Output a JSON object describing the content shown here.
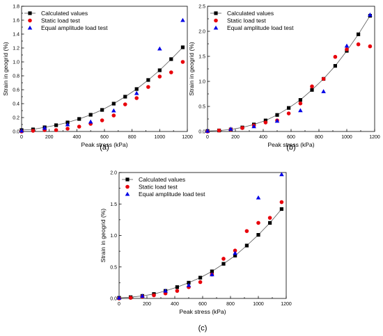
{
  "figure": {
    "legend_labels": {
      "calculated": "Calculated values",
      "static": "Static load test",
      "equal": "Equal amplitude load test"
    },
    "colors": {
      "calculated": "#000000",
      "static": "#e8000b",
      "equal": "#0000e6"
    }
  },
  "chart_data": [
    {
      "type": "scatter",
      "panel_label": "(a)",
      "xlabel": "Peak stress (kPa)",
      "ylabel": "Strain in geogrid (%)",
      "xlim": [
        0,
        1200
      ],
      "ylim": [
        0,
        1.8
      ],
      "xticks": [
        0,
        200,
        400,
        600,
        800,
        1000,
        1200
      ],
      "yticks": [
        0.0,
        0.2,
        0.4,
        0.6,
        0.8,
        1.0,
        1.2,
        1.4,
        1.6,
        1.8
      ],
      "ytick_labels": [
        "0.0",
        "0.2",
        "0.4",
        "0.6",
        "0.8",
        "1.0",
        "1.2",
        "1.4",
        "1.6",
        "1.8"
      ],
      "legend_position": "top-left",
      "grid": false,
      "series": [
        {
          "name": "Calculated values",
          "marker": "square",
          "line": true,
          "x": [
            0,
            83,
            167,
            250,
            333,
            417,
            500,
            583,
            667,
            750,
            833,
            917,
            1000,
            1083,
            1167
          ],
          "y": [
            0.02,
            0.03,
            0.06,
            0.09,
            0.13,
            0.18,
            0.24,
            0.31,
            0.4,
            0.5,
            0.61,
            0.74,
            0.88,
            1.04,
            1.21
          ]
        },
        {
          "name": "Static load test",
          "marker": "circle",
          "line": false,
          "x": [
            0,
            83,
            167,
            250,
            333,
            417,
            500,
            583,
            667,
            750,
            833,
            917,
            1000,
            1083,
            1167
          ],
          "y": [
            0.0,
            0.01,
            0.02,
            0.02,
            0.04,
            0.07,
            0.11,
            0.16,
            0.23,
            0.39,
            0.48,
            0.64,
            0.79,
            0.85,
            1.0
          ]
        },
        {
          "name": "Equal amplitude load test",
          "marker": "triangle",
          "line": false,
          "x": [
            0,
            167,
            333,
            500,
            667,
            833,
            1000,
            1167
          ],
          "y": [
            0.01,
            0.05,
            0.1,
            0.14,
            0.3,
            0.55,
            1.19,
            1.6
          ]
        }
      ]
    },
    {
      "type": "scatter",
      "panel_label": "(b)",
      "xlabel": "Peak stress (kPa)",
      "ylabel": "Strain in geogrid (%)",
      "xlim": [
        0,
        1200
      ],
      "ylim": [
        0,
        2.5
      ],
      "xticks": [
        0,
        200,
        400,
        600,
        800,
        1000,
        1200
      ],
      "yticks": [
        0.0,
        0.5,
        1.0,
        1.5,
        2.0,
        2.5
      ],
      "ytick_labels": [
        "0.0",
        "0.5",
        "1.0",
        "1.5",
        "2.0",
        "2.5"
      ],
      "legend_position": "top-left",
      "grid": false,
      "series": [
        {
          "name": "Calculated values",
          "marker": "square",
          "line": true,
          "x": [
            0,
            83,
            167,
            250,
            333,
            417,
            500,
            583,
            667,
            750,
            833,
            917,
            1000,
            1083,
            1167
          ],
          "y": [
            0.01,
            0.02,
            0.04,
            0.08,
            0.14,
            0.22,
            0.33,
            0.47,
            0.63,
            0.83,
            1.05,
            1.31,
            1.61,
            1.94,
            2.31
          ]
        },
        {
          "name": "Static load test",
          "marker": "circle",
          "line": false,
          "x": [
            0,
            83,
            167,
            250,
            333,
            417,
            500,
            583,
            667,
            750,
            833,
            917,
            1000,
            1083,
            1167
          ],
          "y": [
            0.0,
            0.02,
            0.04,
            0.07,
            0.12,
            0.18,
            0.22,
            0.36,
            0.56,
            0.9,
            1.05,
            1.49,
            1.64,
            1.74,
            1.7
          ]
        },
        {
          "name": "Equal amplitude load test",
          "marker": "triangle",
          "line": false,
          "x": [
            0,
            167,
            333,
            500,
            667,
            833,
            1000,
            1167
          ],
          "y": [
            0.01,
            0.05,
            0.1,
            0.21,
            0.42,
            0.8,
            1.71,
            2.33
          ]
        }
      ]
    },
    {
      "type": "scatter",
      "panel_label": "(c)",
      "xlabel": "Peak stress (kPa)",
      "ylabel": "Strain in geogrid (%)",
      "xlim": [
        0,
        1200
      ],
      "ylim": [
        0,
        2.0
      ],
      "xticks": [
        0,
        200,
        400,
        600,
        800,
        1000,
        1200
      ],
      "yticks": [
        0.0,
        0.5,
        1.0,
        1.5,
        2.0
      ],
      "ytick_labels": [
        "0.0",
        "0.5",
        "1.0",
        "1.5",
        "2.0"
      ],
      "legend_position": "top-left",
      "grid": false,
      "series": [
        {
          "name": "Calculated values",
          "marker": "square",
          "line": true,
          "x": [
            0,
            83,
            167,
            250,
            333,
            417,
            500,
            583,
            667,
            750,
            833,
            917,
            1000,
            1083,
            1167
          ],
          "y": [
            0.01,
            0.02,
            0.04,
            0.07,
            0.12,
            0.18,
            0.25,
            0.33,
            0.43,
            0.55,
            0.68,
            0.84,
            1.01,
            1.2,
            1.42
          ]
        },
        {
          "name": "Static load test",
          "marker": "circle",
          "line": false,
          "x": [
            0,
            83,
            167,
            250,
            333,
            417,
            500,
            583,
            667,
            750,
            833,
            917,
            1000,
            1083,
            1167
          ],
          "y": [
            0.0,
            0.01,
            0.03,
            0.05,
            0.08,
            0.12,
            0.18,
            0.26,
            0.38,
            0.63,
            0.76,
            1.07,
            1.2,
            1.28,
            1.53
          ]
        },
        {
          "name": "Equal amplitude load test",
          "marker": "triangle",
          "line": false,
          "x": [
            0,
            167,
            333,
            500,
            667,
            833,
            1000,
            1167
          ],
          "y": [
            0.01,
            0.04,
            0.12,
            0.21,
            0.38,
            0.72,
            1.6,
            1.97
          ]
        }
      ]
    }
  ]
}
